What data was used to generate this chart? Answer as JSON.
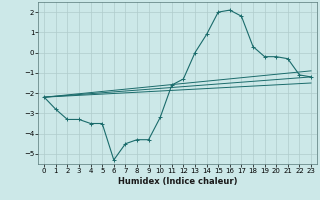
{
  "xlabel": "Humidex (Indice chaleur)",
  "ylabel": "",
  "background_color": "#cce8e8",
  "grid_color": "#b0cccc",
  "line_color": "#1a6b6b",
  "xlim": [
    -0.5,
    23.5
  ],
  "ylim": [
    -5.5,
    2.5
  ],
  "xticks": [
    0,
    1,
    2,
    3,
    4,
    5,
    6,
    7,
    8,
    9,
    10,
    11,
    12,
    13,
    14,
    15,
    16,
    17,
    18,
    19,
    20,
    21,
    22,
    23
  ],
  "yticks": [
    -5,
    -4,
    -3,
    -2,
    -1,
    0,
    1,
    2
  ],
  "line1_x": [
    0,
    1,
    2,
    3,
    4,
    5,
    6,
    7,
    8,
    9,
    10,
    11,
    12,
    13,
    14,
    15,
    16,
    17,
    18,
    19,
    20,
    21,
    22,
    23
  ],
  "line1_y": [
    -2.2,
    -2.8,
    -3.3,
    -3.3,
    -3.5,
    -3.5,
    -5.3,
    -4.5,
    -4.3,
    -4.3,
    -3.2,
    -1.6,
    -1.3,
    0.0,
    0.9,
    2.0,
    2.1,
    1.8,
    0.3,
    -0.2,
    -0.2,
    -0.3,
    -1.1,
    -1.2
  ],
  "line2_x": [
    0,
    23
  ],
  "line2_y": [
    -2.2,
    -1.2
  ],
  "line3_x": [
    0,
    23
  ],
  "line3_y": [
    -2.2,
    -1.5
  ],
  "line4_x": [
    0,
    23
  ],
  "line4_y": [
    -2.2,
    -0.9
  ]
}
